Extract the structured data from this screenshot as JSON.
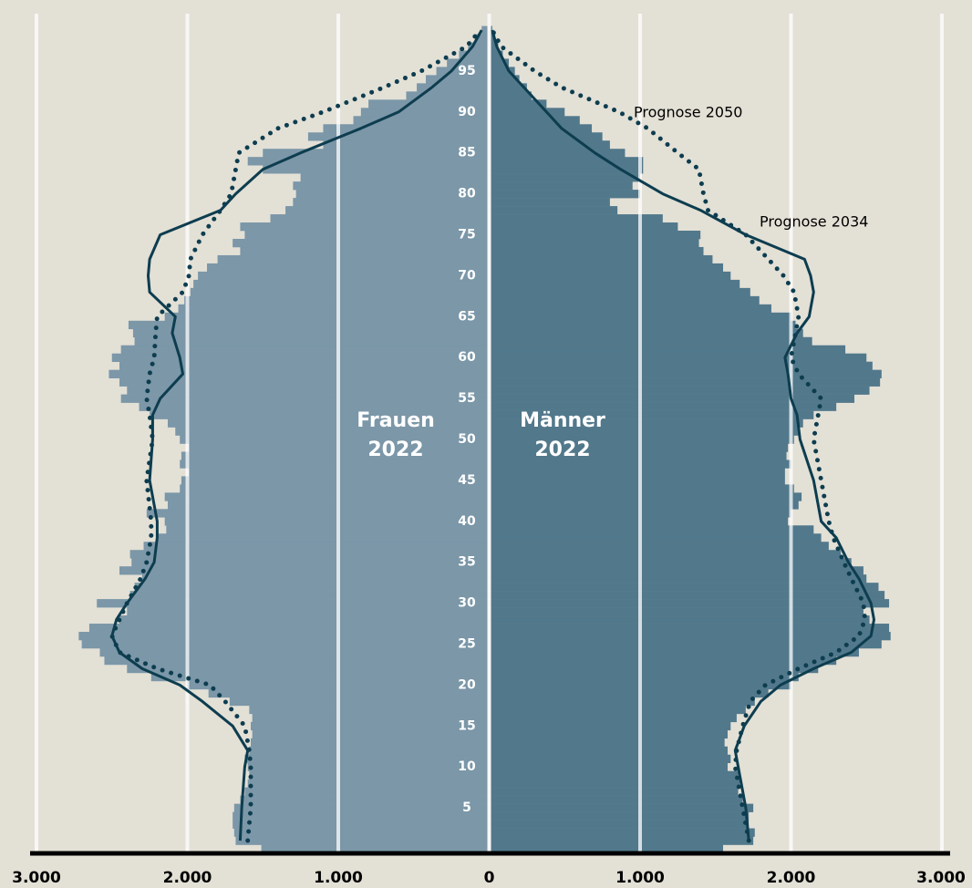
{
  "chart_data": {
    "type": "pyramid",
    "xlim": [
      -3000,
      3000
    ],
    "xticks": [
      {
        "value": -3000,
        "label": "3.000"
      },
      {
        "value": -2000,
        "label": "2.000"
      },
      {
        "value": -1000,
        "label": "1.000"
      },
      0,
      {
        "value": 1000,
        "label": "1.000"
      },
      {
        "value": 2000,
        "label": "2.000"
      },
      {
        "value": 3000,
        "label": "3.000"
      }
    ],
    "ylim": [
      -0.5,
      102
    ],
    "yticks": [
      5,
      10,
      15,
      20,
      25,
      30,
      35,
      40,
      45,
      50,
      55,
      60,
      65,
      70,
      75,
      80,
      85,
      90,
      95
    ],
    "ages": [
      0,
      1,
      2,
      3,
      4,
      5,
      6,
      7,
      8,
      9,
      10,
      11,
      12,
      13,
      14,
      15,
      16,
      17,
      18,
      19,
      20,
      21,
      22,
      23,
      24,
      25,
      26,
      27,
      28,
      29,
      30,
      31,
      32,
      33,
      34,
      35,
      36,
      37,
      38,
      39,
      40,
      41,
      42,
      43,
      44,
      45,
      46,
      47,
      48,
      49,
      50,
      51,
      52,
      53,
      54,
      55,
      56,
      57,
      58,
      59,
      60,
      61,
      62,
      63,
      64,
      65,
      66,
      67,
      68,
      69,
      70,
      71,
      72,
      73,
      74,
      75,
      76,
      77,
      78,
      79,
      80,
      81,
      82,
      83,
      84,
      85,
      86,
      87,
      88,
      89,
      90,
      91,
      92,
      93,
      94,
      95,
      96,
      97,
      98,
      99,
      100
    ],
    "grid": true,
    "series": [
      {
        "name": "Frauen",
        "year": "2022",
        "side": "left",
        "color": "#7b97a8",
        "values": [
          1510,
          1680,
          1690,
          1700,
          1700,
          1690,
          1650,
          1620,
          1600,
          1590,
          1600,
          1620,
          1590,
          1580,
          1570,
          1580,
          1570,
          1590,
          1720,
          1860,
          2000,
          2240,
          2400,
          2550,
          2580,
          2700,
          2720,
          2650,
          2450,
          2400,
          2600,
          2380,
          2350,
          2300,
          2450,
          2370,
          2380,
          2290,
          2200,
          2140,
          2150,
          2270,
          2130,
          2150,
          2050,
          2040,
          1990,
          2050,
          2040,
          1990,
          2050,
          2080,
          2130,
          2250,
          2320,
          2440,
          2400,
          2450,
          2520,
          2450,
          2500,
          2440,
          2350,
          2360,
          2390,
          2150,
          2060,
          2020,
          1980,
          1960,
          1930,
          1870,
          1800,
          1650,
          1700,
          1620,
          1650,
          1450,
          1350,
          1300,
          1280,
          1300,
          1250,
          1500,
          1600,
          1500,
          1100,
          1200,
          1100,
          900,
          850,
          800,
          550,
          480,
          420,
          350,
          280,
          200,
          140,
          90,
          50
        ]
      },
      {
        "name": "Männer",
        "year": "2022",
        "side": "right",
        "color": "#52788b",
        "values": [
          1550,
          1750,
          1760,
          1720,
          1720,
          1750,
          1680,
          1650,
          1660,
          1650,
          1580,
          1600,
          1580,
          1560,
          1580,
          1600,
          1640,
          1700,
          1760,
          1850,
          2000,
          2050,
          2180,
          2300,
          2450,
          2600,
          2660,
          2650,
          2520,
          2480,
          2650,
          2620,
          2580,
          2500,
          2480,
          2400,
          2330,
          2250,
          2200,
          2150,
          1980,
          2000,
          2050,
          2070,
          2020,
          1960,
          1960,
          2000,
          1970,
          1980,
          2020,
          2050,
          2080,
          2150,
          2300,
          2420,
          2520,
          2590,
          2600,
          2540,
          2500,
          2360,
          2140,
          2080,
          2030,
          2000,
          1870,
          1790,
          1730,
          1660,
          1600,
          1550,
          1480,
          1420,
          1390,
          1400,
          1250,
          1150,
          850,
          800,
          1000,
          950,
          1000,
          1020,
          1020,
          900,
          800,
          750,
          680,
          600,
          500,
          380,
          280,
          250,
          200,
          170,
          130,
          90,
          60,
          40,
          20
        ]
      }
    ],
    "lines": [
      {
        "name": "Prognose 2050",
        "dotted": true,
        "color": "#0d3d4f",
        "ages": [
          1,
          5,
          10,
          12,
          15,
          18,
          20,
          22,
          24,
          26,
          28,
          30,
          33,
          35,
          38,
          40,
          45,
          50,
          53,
          55,
          58,
          60,
          63,
          65,
          68,
          70,
          72,
          75,
          78,
          80,
          83,
          85,
          88,
          90,
          93,
          95,
          98,
          100
        ],
        "female": [
          1600,
          1580,
          1580,
          1590,
          1620,
          1750,
          1850,
          2200,
          2450,
          2500,
          2450,
          2400,
          2310,
          2270,
          2240,
          2240,
          2270,
          2230,
          2250,
          2270,
          2250,
          2220,
          2210,
          2200,
          2030,
          1990,
          1980,
          1900,
          1780,
          1710,
          1680,
          1660,
          1400,
          1100,
          700,
          450,
          150,
          60
        ],
        "male": [
          1720,
          1680,
          1630,
          1640,
          1680,
          1730,
          1830,
          2050,
          2300,
          2450,
          2490,
          2480,
          2400,
          2350,
          2280,
          2250,
          2200,
          2150,
          2180,
          2200,
          2050,
          2000,
          2030,
          2050,
          2020,
          1950,
          1850,
          1700,
          1450,
          1420,
          1390,
          1250,
          1050,
          860,
          480,
          300,
          80,
          20
        ]
      },
      {
        "name": "Prognose 2034",
        "dotted": false,
        "color": "#0d3d4f",
        "ages": [
          1,
          5,
          10,
          12,
          15,
          18,
          20,
          22,
          24,
          26,
          28,
          30,
          33,
          35,
          38,
          40,
          45,
          50,
          53,
          55,
          58,
          60,
          63,
          65,
          68,
          70,
          72,
          75,
          78,
          80,
          83,
          85,
          88,
          90,
          93,
          95,
          98,
          100
        ],
        "female": [
          1650,
          1640,
          1620,
          1600,
          1700,
          1900,
          2050,
          2300,
          2450,
          2500,
          2470,
          2400,
          2280,
          2220,
          2200,
          2200,
          2250,
          2230,
          2230,
          2180,
          2030,
          2050,
          2100,
          2080,
          2250,
          2260,
          2250,
          2180,
          1780,
          1680,
          1500,
          1250,
          850,
          600,
          380,
          250,
          110,
          50
        ],
        "male": [
          1720,
          1700,
          1650,
          1630,
          1690,
          1800,
          1930,
          2150,
          2400,
          2530,
          2550,
          2530,
          2450,
          2380,
          2300,
          2200,
          2150,
          2060,
          2040,
          2000,
          1980,
          1960,
          2040,
          2120,
          2150,
          2130,
          2090,
          1700,
          1400,
          1150,
          870,
          700,
          480,
          380,
          230,
          130,
          50,
          20
        ]
      }
    ]
  }
}
